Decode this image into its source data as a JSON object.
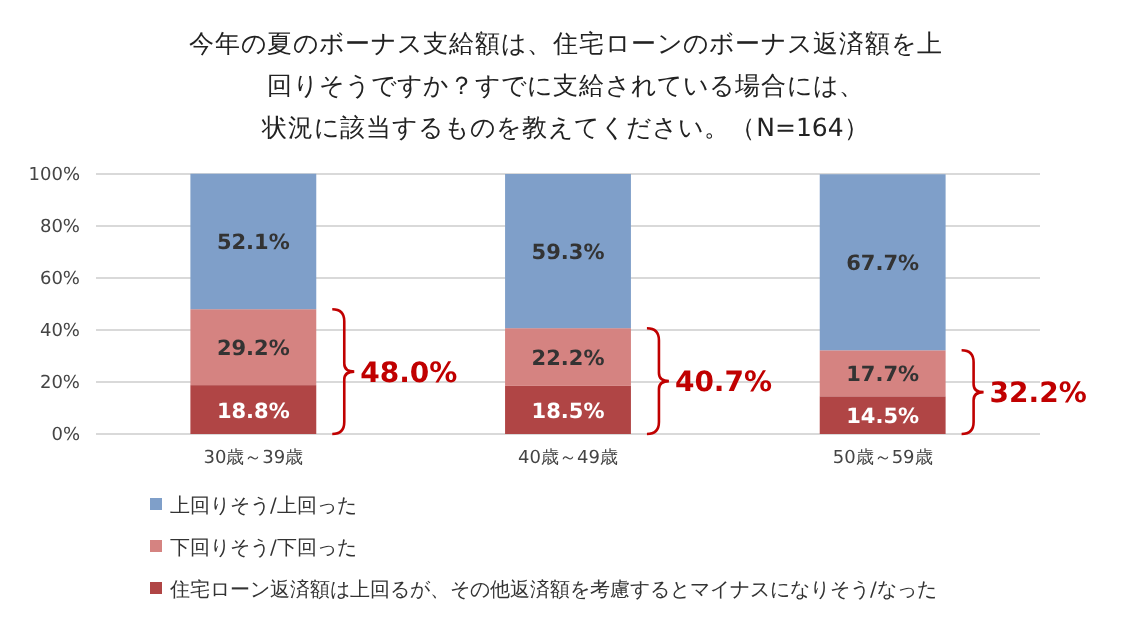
{
  "chart_data": {
    "type": "bar",
    "stacked": true,
    "title": "今年の夏のボーナス支給額は、住宅ローンのボーナス返済額を上回りそうですか？すでに支給されている場合には、状況に該当するものを教えてください。（N=164）",
    "categories": [
      "30歳～39歳",
      "40歳～49歳",
      "50歳～59歳"
    ],
    "series": [
      {
        "name": "住宅ローン返済額は上回るが、その他返済額を考慮するとマイナスになりそう/なった",
        "color": "#b04545",
        "values": [
          18.8,
          18.5,
          14.5
        ],
        "value_labels": [
          "18.8%",
          "18.5%",
          "14.5%"
        ]
      },
      {
        "name": "下回りそう/下回った",
        "color": "#d58381",
        "values": [
          29.2,
          22.2,
          17.7
        ],
        "value_labels": [
          "29.2%",
          "22.2%",
          "17.7%"
        ]
      },
      {
        "name": "上回りそう/上回った",
        "color": "#7f9fc9",
        "values": [
          52.1,
          59.3,
          67.7
        ],
        "value_labels": [
          "52.1%",
          "59.3%",
          "67.7%"
        ]
      }
    ],
    "ylim": [
      0,
      100
    ],
    "yticks": [
      {
        "value": 0,
        "label": "0%"
      },
      {
        "value": 20,
        "label": "20%"
      },
      {
        "value": 40,
        "label": "40%"
      },
      {
        "value": 60,
        "label": "60%"
      },
      {
        "value": 80,
        "label": "80%"
      },
      {
        "value": 100,
        "label": "100%"
      }
    ],
    "grid": "y",
    "legend": "bottom",
    "annotations": [
      "48.0%",
      "40.7%",
      "32.2%"
    ]
  }
}
